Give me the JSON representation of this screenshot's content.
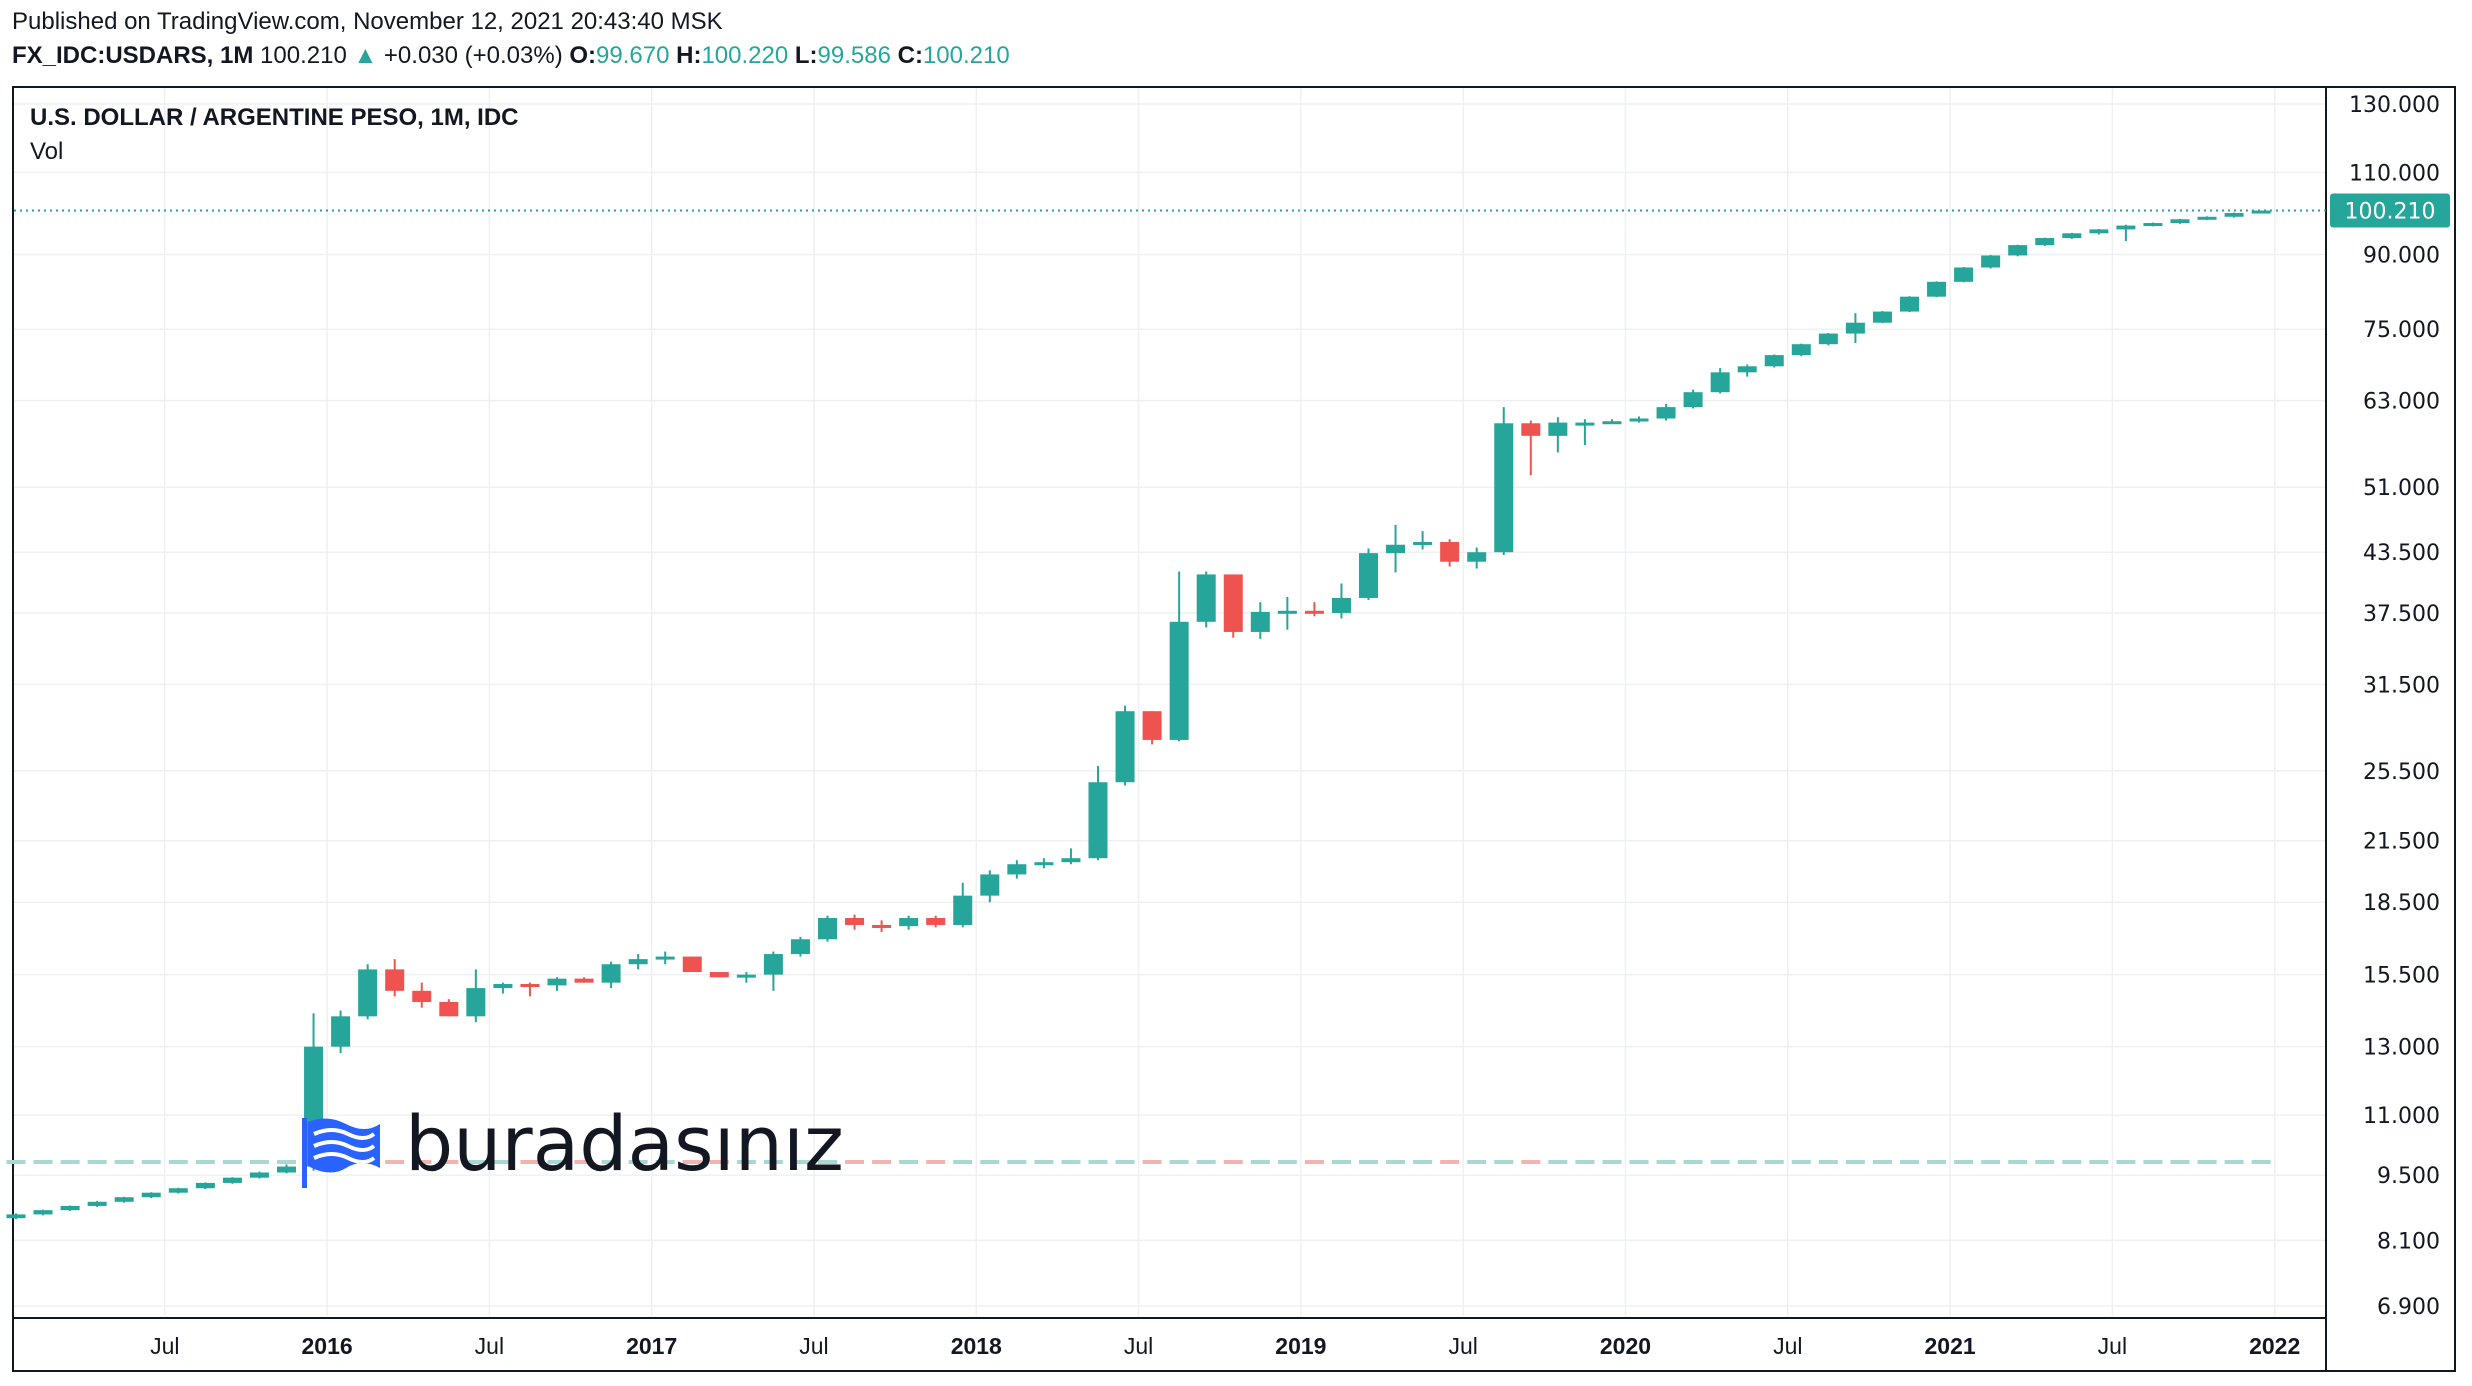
{
  "header": {
    "published": "Published on TradingView.com, November 12, 2021 20:43:40 MSK",
    "symbol": "FX_IDC:USDARS, 1M",
    "last": "100.210",
    "change": "+0.030 (+0.03%)",
    "o_label": "O:",
    "o_value": "99.670",
    "h_label": "H:",
    "h_value": "100.220",
    "l_label": "L:",
    "l_value": "99.586",
    "c_label": "C:",
    "c_value": "100.210"
  },
  "legend": {
    "title": "U.S. DOLLAR / ARGENTINE PESO, 1M, IDC",
    "vol": "Vol"
  },
  "watermark": {
    "text": "buradasınız",
    "icon": "flag-icon"
  },
  "colors": {
    "up": "#26a69a",
    "down": "#ef5350",
    "grid": "#eef0f3",
    "text": "#131722"
  },
  "chart_data": {
    "type": "candlestick",
    "title": "U.S. DOLLAR / ARGENTINE PESO, 1M, IDC",
    "y_scale": "log",
    "y_ticks": [
      6.9,
      8.1,
      9.5,
      11,
      13,
      15.5,
      18.5,
      21.5,
      25.5,
      31.5,
      37.5,
      43.5,
      51,
      63,
      75,
      90,
      110,
      130
    ],
    "y_tick_labels": [
      "6.900",
      "8.100",
      "9.500",
      "11.000",
      "13.000",
      "15.500",
      "18.500",
      "21.500",
      "25.500",
      "31.500",
      "37.500",
      "43.500",
      "51.000",
      "63.000",
      "75.000",
      "90.000",
      "110.000",
      "130.000"
    ],
    "x_tick_labels": [
      "Jul",
      "2016",
      "Jul",
      "2017",
      "Jul",
      "2018",
      "Jul",
      "2019",
      "Jul",
      "2020",
      "Jul",
      "2021",
      "Jul",
      "2022"
    ],
    "x_tick_bold": [
      false,
      true,
      false,
      true,
      false,
      true,
      false,
      true,
      false,
      true,
      false,
      true,
      false,
      true
    ],
    "last_price": 100.21,
    "last_price_label": "100.210",
    "start": "2015-01",
    "ohlc": [
      [
        8.55,
        8.65,
        8.53,
        8.63
      ],
      [
        8.63,
        8.73,
        8.61,
        8.72
      ],
      [
        8.72,
        8.82,
        8.7,
        8.81
      ],
      [
        8.81,
        8.92,
        8.79,
        8.9
      ],
      [
        8.9,
        9.01,
        8.88,
        9.0
      ],
      [
        9.0,
        9.11,
        8.98,
        9.1
      ],
      [
        9.1,
        9.21,
        9.08,
        9.2
      ],
      [
        9.2,
        9.33,
        9.18,
        9.32
      ],
      [
        9.32,
        9.45,
        9.3,
        9.44
      ],
      [
        9.44,
        9.58,
        9.42,
        9.56
      ],
      [
        9.56,
        9.75,
        9.54,
        9.7
      ],
      [
        9.7,
        14.1,
        9.6,
        13.0
      ],
      [
        13.0,
        14.2,
        12.8,
        14.0
      ],
      [
        14.0,
        15.9,
        13.9,
        15.7
      ],
      [
        15.7,
        16.1,
        14.7,
        14.9
      ],
      [
        14.9,
        15.2,
        14.3,
        14.5
      ],
      [
        14.5,
        14.6,
        14.0,
        14.0
      ],
      [
        14.0,
        15.7,
        13.8,
        15.0
      ],
      [
        15.0,
        15.2,
        14.8,
        15.15
      ],
      [
        15.15,
        15.2,
        14.7,
        15.1
      ],
      [
        15.1,
        15.4,
        14.9,
        15.35
      ],
      [
        15.35,
        15.4,
        15.2,
        15.2
      ],
      [
        15.2,
        16.0,
        15.0,
        15.9
      ],
      [
        15.9,
        16.3,
        15.7,
        16.1
      ],
      [
        16.1,
        16.4,
        15.9,
        16.2
      ],
      [
        16.2,
        16.2,
        15.6,
        15.6
      ],
      [
        15.6,
        15.6,
        15.4,
        15.4
      ],
      [
        15.4,
        15.6,
        15.2,
        15.5
      ],
      [
        15.5,
        16.4,
        14.9,
        16.3
      ],
      [
        16.3,
        17.0,
        16.2,
        16.9
      ],
      [
        16.9,
        17.9,
        16.8,
        17.8
      ],
      [
        17.8,
        17.95,
        17.3,
        17.5
      ],
      [
        17.5,
        17.7,
        17.2,
        17.45
      ],
      [
        17.45,
        17.9,
        17.3,
        17.8
      ],
      [
        17.8,
        17.9,
        17.4,
        17.5
      ],
      [
        17.5,
        19.4,
        17.4,
        18.8
      ],
      [
        18.8,
        20.0,
        18.5,
        19.8
      ],
      [
        19.8,
        20.5,
        19.6,
        20.3
      ],
      [
        20.3,
        20.6,
        20.1,
        20.4
      ],
      [
        20.4,
        21.1,
        20.3,
        20.6
      ],
      [
        20.6,
        25.8,
        20.5,
        24.8
      ],
      [
        24.8,
        29.9,
        24.6,
        29.5
      ],
      [
        29.5,
        29.5,
        27.2,
        27.5
      ],
      [
        27.5,
        41.5,
        27.4,
        36.7
      ],
      [
        36.7,
        41.5,
        36.2,
        41.2
      ],
      [
        41.2,
        41.2,
        35.3,
        35.8
      ],
      [
        35.8,
        38.5,
        35.2,
        37.6
      ],
      [
        37.6,
        39.0,
        36.0,
        37.7
      ],
      [
        37.7,
        38.5,
        37.2,
        37.5
      ],
      [
        37.5,
        40.3,
        37.0,
        38.9
      ],
      [
        38.9,
        43.9,
        38.7,
        43.4
      ],
      [
        43.4,
        46.5,
        41.4,
        44.3
      ],
      [
        44.3,
        45.8,
        43.8,
        44.6
      ],
      [
        44.6,
        44.9,
        42.0,
        42.5
      ],
      [
        42.5,
        44.0,
        41.8,
        43.5
      ],
      [
        43.5,
        62.0,
        43.2,
        59.6
      ],
      [
        59.6,
        60.0,
        52.5,
        57.8
      ],
      [
        57.8,
        60.5,
        55.5,
        59.7
      ],
      [
        59.7,
        60.2,
        56.5,
        59.7
      ],
      [
        59.7,
        60.2,
        59.5,
        59.9
      ],
      [
        59.9,
        60.6,
        59.7,
        60.3
      ],
      [
        60.3,
        62.5,
        60.0,
        62.0
      ],
      [
        62.0,
        64.7,
        61.8,
        64.3
      ],
      [
        64.3,
        68.2,
        64.1,
        67.5
      ],
      [
        67.5,
        68.8,
        66.8,
        68.5
      ],
      [
        68.5,
        70.5,
        68.3,
        70.4
      ],
      [
        70.4,
        72.4,
        70.2,
        72.3
      ],
      [
        72.3,
        74.3,
        72.1,
        74.2
      ],
      [
        74.2,
        78.0,
        72.5,
        76.2
      ],
      [
        76.2,
        78.4,
        76.1,
        78.3
      ],
      [
        78.3,
        81.3,
        78.2,
        81.2
      ],
      [
        81.2,
        84.3,
        81.1,
        84.2
      ],
      [
        84.2,
        87.3,
        84.1,
        87.2
      ],
      [
        87.2,
        89.9,
        87.0,
        89.8
      ],
      [
        89.8,
        92.2,
        89.6,
        92.1
      ],
      [
        92.1,
        93.8,
        91.9,
        93.7
      ],
      [
        93.7,
        94.9,
        93.5,
        94.8
      ],
      [
        94.8,
        95.8,
        94.5,
        95.7
      ],
      [
        95.7,
        96.8,
        93.0,
        96.6
      ],
      [
        96.6,
        97.3,
        96.4,
        97.2
      ],
      [
        97.2,
        98.2,
        97.0,
        98.1
      ],
      [
        98.1,
        98.8,
        97.9,
        98.7
      ],
      [
        98.7,
        99.7,
        98.5,
        99.6
      ],
      [
        99.67,
        100.22,
        99.586,
        100.21
      ]
    ]
  }
}
